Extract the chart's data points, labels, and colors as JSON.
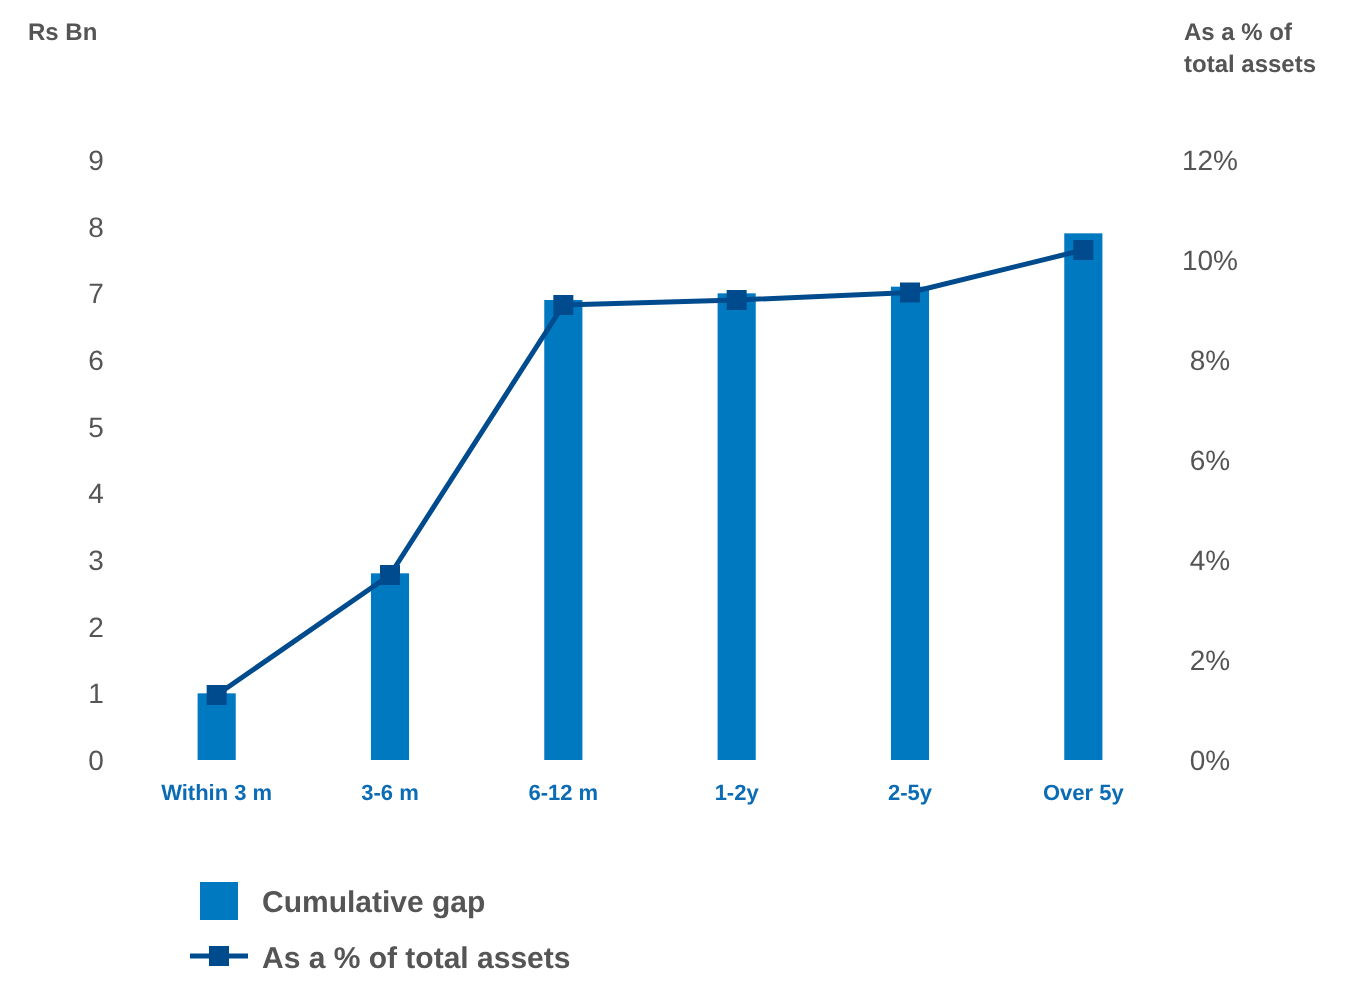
{
  "chart_data": {
    "type": "bar",
    "ylabel": "Rs Bn",
    "y2label": "As a % of total assets",
    "categories": [
      "Within 3 m",
      "3-6 m",
      "6-12 m",
      "1-2y",
      "2-5y",
      "Over 5y"
    ],
    "series": [
      {
        "name": "Cumulative gap",
        "color": "#0079c1",
        "values": [
          1.0,
          2.8,
          6.9,
          7.0,
          7.1,
          7.9
        ]
      },
      {
        "name": "As a % of total assets",
        "type": "line",
        "axis": "y2",
        "color": "#004b8d",
        "values": [
          1.3,
          3.7,
          9.1,
          9.2,
          9.35,
          10.2
        ]
      }
    ],
    "ylim": [
      0,
      9
    ],
    "yticks": [
      0,
      1,
      2,
      3,
      4,
      5,
      6,
      7,
      8,
      9
    ],
    "y2lim": [
      0,
      12
    ],
    "y2ticks": [
      {
        "value": 0,
        "label": "0%"
      },
      {
        "value": 2,
        "label": "2%"
      },
      {
        "value": 4,
        "label": "4%"
      },
      {
        "value": 6,
        "label": "6%"
      },
      {
        "value": 8,
        "label": "8%"
      },
      {
        "value": 10,
        "label": "10%"
      },
      {
        "value": 12,
        "label": "12%"
      }
    ],
    "grid": false,
    "legend": "bottom left",
    "marker": "square",
    "line_style": "solid"
  }
}
